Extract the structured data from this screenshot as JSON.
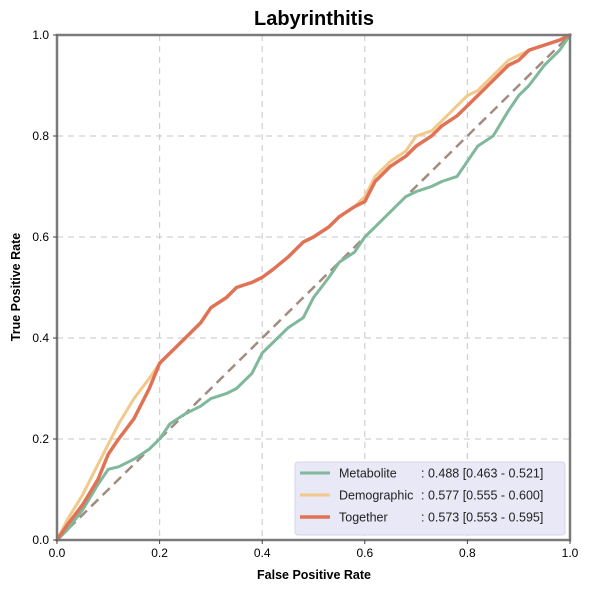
{
  "chart_data": {
    "type": "line",
    "title": "Labyrinthitis",
    "xlabel": "False Positive Rate",
    "ylabel": "True Positive Rate",
    "xlim": [
      0,
      1
    ],
    "ylim": [
      0,
      1
    ],
    "xticks": [
      "0.0",
      "0.2",
      "0.4",
      "0.6",
      "0.8",
      "1.0"
    ],
    "yticks": [
      "0.0",
      "0.2",
      "0.4",
      "0.6",
      "0.8",
      "1.0"
    ],
    "grid": true,
    "legend_position": "lower-right",
    "diagonal_reference": {
      "x": [
        0,
        1
      ],
      "y": [
        0,
        1
      ],
      "color": "#a38b80",
      "style": "dashed"
    },
    "series": [
      {
        "name": "Metabolite",
        "auc_label": ": 0.488 [0.463 - 0.521]",
        "color": "#7fb89a",
        "x": [
          0.0,
          0.02,
          0.05,
          0.08,
          0.1,
          0.12,
          0.15,
          0.18,
          0.2,
          0.22,
          0.25,
          0.28,
          0.3,
          0.33,
          0.35,
          0.38,
          0.4,
          0.42,
          0.45,
          0.48,
          0.5,
          0.53,
          0.55,
          0.58,
          0.6,
          0.62,
          0.65,
          0.68,
          0.7,
          0.73,
          0.75,
          0.78,
          0.8,
          0.82,
          0.85,
          0.88,
          0.9,
          0.92,
          0.95,
          0.98,
          1.0
        ],
        "y": [
          0.0,
          0.02,
          0.06,
          0.11,
          0.14,
          0.145,
          0.16,
          0.18,
          0.2,
          0.23,
          0.25,
          0.265,
          0.28,
          0.29,
          0.3,
          0.33,
          0.37,
          0.39,
          0.42,
          0.44,
          0.48,
          0.52,
          0.55,
          0.57,
          0.6,
          0.62,
          0.65,
          0.68,
          0.69,
          0.7,
          0.71,
          0.72,
          0.75,
          0.78,
          0.8,
          0.85,
          0.88,
          0.9,
          0.94,
          0.97,
          1.0
        ]
      },
      {
        "name": "Demographic",
        "auc_label": ": 0.577 [0.555 - 0.600]",
        "color": "#f2c98a",
        "x": [
          0.0,
          0.02,
          0.05,
          0.08,
          0.1,
          0.12,
          0.15,
          0.18,
          0.2,
          0.22,
          0.25,
          0.28,
          0.3,
          0.33,
          0.35,
          0.38,
          0.4,
          0.42,
          0.45,
          0.48,
          0.5,
          0.53,
          0.55,
          0.58,
          0.6,
          0.62,
          0.65,
          0.68,
          0.7,
          0.73,
          0.75,
          0.78,
          0.8,
          0.82,
          0.85,
          0.88,
          0.9,
          0.92,
          0.95,
          0.98,
          1.0
        ],
        "y": [
          0.0,
          0.04,
          0.09,
          0.15,
          0.19,
          0.23,
          0.28,
          0.32,
          0.35,
          0.37,
          0.4,
          0.43,
          0.46,
          0.48,
          0.5,
          0.51,
          0.52,
          0.535,
          0.56,
          0.59,
          0.6,
          0.62,
          0.64,
          0.66,
          0.68,
          0.72,
          0.75,
          0.77,
          0.8,
          0.81,
          0.83,
          0.86,
          0.88,
          0.89,
          0.92,
          0.95,
          0.96,
          0.97,
          0.98,
          0.99,
          1.0
        ]
      },
      {
        "name": "Together",
        "auc_label": ": 0.573 [0.553 - 0.595]",
        "color": "#e07256",
        "x": [
          0.0,
          0.02,
          0.05,
          0.08,
          0.1,
          0.12,
          0.15,
          0.18,
          0.2,
          0.22,
          0.25,
          0.28,
          0.3,
          0.33,
          0.35,
          0.38,
          0.4,
          0.42,
          0.45,
          0.48,
          0.5,
          0.53,
          0.55,
          0.58,
          0.6,
          0.62,
          0.65,
          0.68,
          0.7,
          0.73,
          0.75,
          0.78,
          0.8,
          0.82,
          0.85,
          0.88,
          0.9,
          0.92,
          0.95,
          0.98,
          1.0
        ],
        "y": [
          0.0,
          0.03,
          0.07,
          0.12,
          0.17,
          0.2,
          0.24,
          0.3,
          0.35,
          0.37,
          0.4,
          0.43,
          0.46,
          0.48,
          0.5,
          0.51,
          0.52,
          0.535,
          0.56,
          0.59,
          0.6,
          0.62,
          0.64,
          0.66,
          0.67,
          0.71,
          0.74,
          0.76,
          0.78,
          0.8,
          0.82,
          0.84,
          0.86,
          0.88,
          0.91,
          0.94,
          0.95,
          0.97,
          0.98,
          0.99,
          1.0
        ]
      }
    ]
  }
}
